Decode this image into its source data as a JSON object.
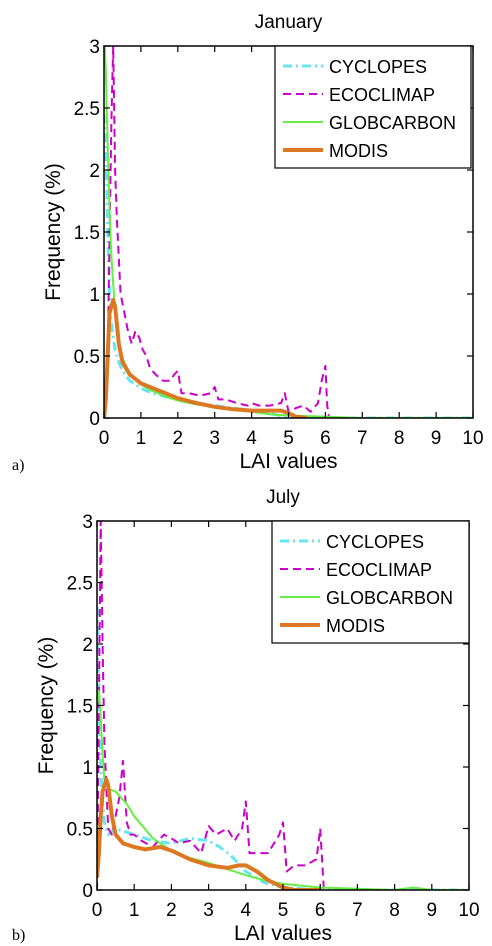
{
  "chart_data": [
    {
      "type": "line",
      "panel_label": "a)",
      "title": "January",
      "xlabel": "LAI values",
      "ylabel": "Frequency (%)",
      "xlim": [
        0,
        10
      ],
      "ylim": [
        0,
        3
      ],
      "xticks": [
        0,
        1,
        2,
        3,
        4,
        5,
        6,
        7,
        8,
        9,
        10
      ],
      "yticks": [
        0,
        0.5,
        1,
        1.5,
        2,
        2.5,
        3
      ],
      "legend_position": "top-right",
      "grid": false,
      "series": [
        {
          "name": "CYCLOPES",
          "color": "#66e6f0",
          "style": "dash-dot",
          "width": 3,
          "x": [
            0,
            0.05,
            0.1,
            0.15,
            0.2,
            0.3,
            0.4,
            0.5,
            0.7,
            1.0,
            1.3,
            1.7,
            2.0,
            2.5,
            3.0,
            3.5,
            4.0,
            4.3,
            4.6,
            5.0,
            5.5,
            6.0,
            7,
            8,
            9,
            10
          ],
          "y": [
            2.45,
            2.2,
            1.5,
            1.0,
            0.75,
            0.55,
            0.45,
            0.38,
            0.3,
            0.24,
            0.2,
            0.17,
            0.15,
            0.12,
            0.1,
            0.08,
            0.06,
            0.04,
            0.03,
            0.01,
            0.005,
            0.0,
            0.0,
            0.0,
            0.0,
            0.0
          ]
        },
        {
          "name": "ECOCLIMAP",
          "color": "#cc00cc",
          "style": "dashed",
          "width": 2,
          "x": [
            0,
            0.1,
            0.2,
            0.25,
            0.3,
            0.35,
            0.45,
            0.55,
            0.65,
            0.75,
            0.85,
            0.95,
            1.05,
            1.15,
            1.25,
            1.4,
            1.6,
            1.8,
            1.9,
            2.0,
            2.1,
            2.3,
            2.6,
            2.9,
            3.0,
            3.1,
            3.3,
            3.6,
            3.9,
            4.0,
            4.2,
            4.5,
            4.8,
            4.9,
            5.0,
            5.2,
            5.4,
            5.6,
            5.8,
            5.9,
            6.0,
            6.05,
            6.1
          ],
          "y": [
            0.0,
            0.5,
            2.4,
            3.0,
            2.0,
            1.6,
            1.0,
            0.85,
            0.7,
            0.6,
            0.7,
            0.65,
            0.55,
            0.5,
            0.4,
            0.35,
            0.3,
            0.3,
            0.35,
            0.38,
            0.2,
            0.2,
            0.18,
            0.2,
            0.25,
            0.15,
            0.15,
            0.12,
            0.1,
            0.12,
            0.1,
            0.1,
            0.12,
            0.2,
            0.05,
            0.08,
            0.1,
            0.05,
            0.12,
            0.3,
            0.42,
            0.1,
            0.0
          ]
        },
        {
          "name": "GLOBCARBON",
          "color": "#66ee44",
          "style": "solid",
          "width": 2,
          "x": [
            0.02,
            0.05,
            0.1,
            0.15,
            0.2,
            0.3,
            0.4,
            0.5,
            0.7,
            1.0,
            1.3,
            1.7,
            2.0,
            2.5,
            3.0,
            3.5,
            4.0,
            4.5,
            5.0,
            6.0,
            7,
            8,
            9,
            10
          ],
          "y": [
            3.0,
            2.8,
            2.2,
            1.7,
            1.3,
            0.85,
            0.6,
            0.48,
            0.36,
            0.27,
            0.22,
            0.17,
            0.14,
            0.11,
            0.09,
            0.07,
            0.05,
            0.03,
            0.02,
            0.01,
            0.0,
            0.0,
            0.0,
            0.0
          ]
        },
        {
          "name": "MODIS",
          "color": "#dd7722",
          "style": "solid",
          "width": 4,
          "x": [
            0,
            0.05,
            0.1,
            0.15,
            0.2,
            0.25,
            0.3,
            0.4,
            0.5,
            0.7,
            1.0,
            1.5,
            2.0,
            2.5,
            3.0,
            3.5,
            4.0,
            4.5,
            4.8,
            5.0,
            5.2,
            5.5
          ],
          "y": [
            0.0,
            0.15,
            0.5,
            0.85,
            0.9,
            0.95,
            0.9,
            0.6,
            0.45,
            0.35,
            0.28,
            0.22,
            0.16,
            0.12,
            0.09,
            0.07,
            0.06,
            0.06,
            0.06,
            0.04,
            0.01,
            0.0
          ]
        }
      ]
    },
    {
      "type": "line",
      "panel_label": "b)",
      "title": "July",
      "xlabel": "LAI values",
      "ylabel": "Frequency (%)",
      "xlim": [
        0,
        10
      ],
      "ylim": [
        0,
        3
      ],
      "xticks": [
        0,
        1,
        2,
        3,
        4,
        5,
        6,
        7,
        8,
        9,
        10
      ],
      "yticks": [
        0,
        0.5,
        1,
        1.5,
        2,
        2.5,
        3
      ],
      "legend_position": "top-right",
      "grid": false,
      "series": [
        {
          "name": "CYCLOPES",
          "color": "#66e6f0",
          "style": "dash-dot",
          "width": 3,
          "x": [
            0,
            0.05,
            0.1,
            0.15,
            0.2,
            0.3,
            0.5,
            0.7,
            1.0,
            1.5,
            2.0,
            2.5,
            3.0,
            3.3,
            3.6,
            4.0,
            4.5,
            5.0,
            6.0,
            7,
            8,
            9,
            10
          ],
          "y": [
            2.3,
            1.6,
            1.0,
            0.7,
            0.55,
            0.45,
            0.5,
            0.48,
            0.45,
            0.4,
            0.38,
            0.42,
            0.4,
            0.35,
            0.28,
            0.15,
            0.06,
            0.02,
            0.0,
            0.0,
            0.0,
            0.0,
            0.0
          ]
        },
        {
          "name": "ECOCLIMAP",
          "color": "#cc00cc",
          "style": "dashed",
          "width": 2,
          "x": [
            0,
            0.05,
            0.1,
            0.15,
            0.2,
            0.3,
            0.4,
            0.5,
            0.6,
            0.7,
            0.8,
            0.9,
            1.0,
            1.2,
            1.5,
            1.8,
            2.0,
            2.2,
            2.5,
            2.8,
            3.0,
            3.2,
            3.5,
            3.7,
            3.9,
            4.0,
            4.1,
            4.3,
            4.6,
            4.9,
            5.0,
            5.1,
            5.3,
            5.6,
            5.9,
            6.0,
            6.1
          ],
          "y": [
            0.0,
            1.5,
            3.0,
            2.0,
            1.2,
            0.5,
            0.45,
            0.6,
            0.75,
            1.05,
            0.55,
            0.45,
            0.45,
            0.4,
            0.35,
            0.45,
            0.42,
            0.38,
            0.4,
            0.3,
            0.52,
            0.45,
            0.5,
            0.4,
            0.5,
            0.72,
            0.3,
            0.3,
            0.3,
            0.45,
            0.55,
            0.15,
            0.2,
            0.2,
            0.25,
            0.5,
            0.0
          ]
        },
        {
          "name": "GLOBCARBON",
          "color": "#66ee44",
          "style": "solid",
          "width": 2,
          "x": [
            0,
            0.05,
            0.1,
            0.15,
            0.2,
            0.3,
            0.5,
            0.8,
            1.0,
            1.5,
            2.0,
            2.5,
            3.0,
            3.5,
            4.0,
            4.5,
            5.0,
            6.0,
            7,
            8,
            8.5,
            9,
            10
          ],
          "y": [
            1.5,
            1.62,
            1.4,
            1.1,
            0.9,
            0.82,
            0.8,
            0.7,
            0.6,
            0.42,
            0.32,
            0.26,
            0.22,
            0.17,
            0.12,
            0.08,
            0.05,
            0.02,
            0.01,
            0.0,
            0.02,
            0.0,
            0.0
          ]
        },
        {
          "name": "MODIS",
          "color": "#dd7722",
          "style": "solid",
          "width": 4,
          "x": [
            0,
            0.05,
            0.1,
            0.15,
            0.2,
            0.25,
            0.3,
            0.4,
            0.5,
            0.7,
            1.0,
            1.3,
            1.7,
            2.0,
            2.5,
            3.0,
            3.5,
            3.8,
            4.0,
            4.3,
            4.6,
            5.0,
            5.3,
            5.6,
            6.0
          ],
          "y": [
            0.1,
            0.3,
            0.6,
            0.8,
            0.85,
            0.9,
            0.85,
            0.6,
            0.45,
            0.38,
            0.35,
            0.33,
            0.35,
            0.32,
            0.25,
            0.2,
            0.18,
            0.2,
            0.2,
            0.15,
            0.08,
            0.02,
            0.0,
            0.0,
            0.0
          ]
        }
      ]
    }
  ]
}
